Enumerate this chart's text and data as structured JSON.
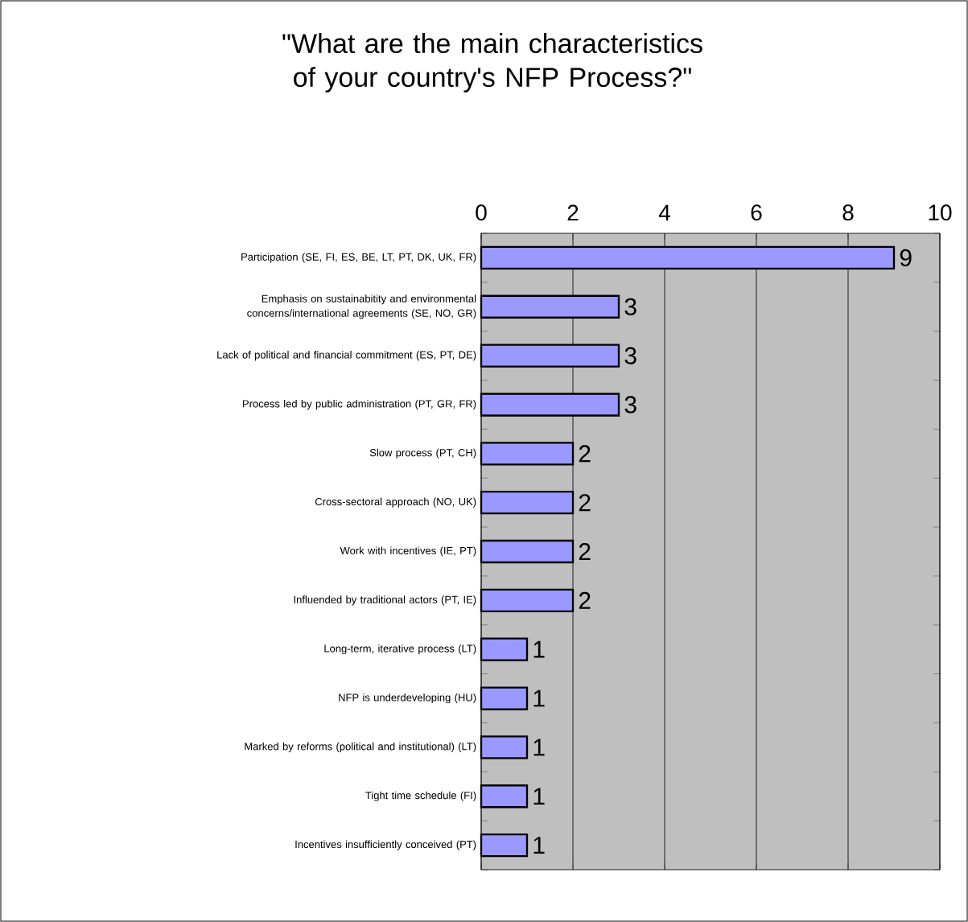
{
  "chart_data": {
    "type": "bar",
    "orientation": "horizontal",
    "title": "\"What are the main characteristics of your country's NFP Process?\"",
    "categories": [
      "Participation (SE, FI, ES, BE, LT, PT, DK, UK, FR)",
      "Emphasis on sustainabitity and environmental concerns/international agreements (SE, NO, GR)",
      "Lack of political and financial commitment (ES, PT, DE)",
      "Process led by public administration (PT, GR, FR)",
      "Slow process (PT, CH)",
      "Cross-sectoral approach (NO, UK)",
      "Work with incentives (IE, PT)",
      "Influended by traditional actors (PT, IE)",
      "Long-term, iterative process (LT)",
      "NFP is underdeveloping (HU)",
      "Marked by reforms (political and institutional) (LT)",
      "Tight time schedule (FI)",
      "Incentives insufficiently conceived (PT)"
    ],
    "values": [
      9,
      3,
      3,
      3,
      2,
      2,
      2,
      2,
      1,
      1,
      1,
      1,
      1
    ],
    "color": "#9999ff",
    "xlim": [
      0,
      10
    ],
    "xticks": [
      0,
      2,
      4,
      6,
      8,
      10
    ],
    "grid": "x",
    "data_labels": true
  }
}
